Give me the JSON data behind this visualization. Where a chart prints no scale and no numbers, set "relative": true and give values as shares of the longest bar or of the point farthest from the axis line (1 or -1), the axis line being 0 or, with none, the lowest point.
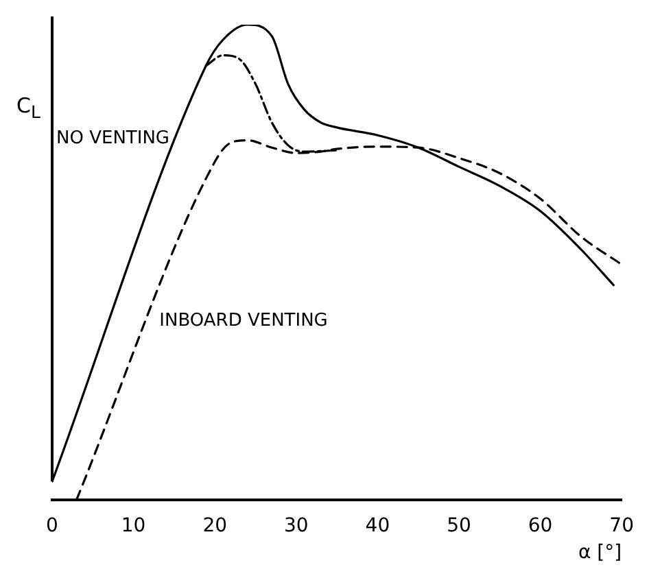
{
  "chart_data": {
    "type": "line",
    "relative": true,
    "ylabel": "C$_{L}$",
    "xlabel": "α [°]",
    "xlim": [
      0,
      70
    ],
    "xticks": [
      0,
      10,
      20,
      30,
      40,
      50,
      60,
      70
    ],
    "grid": false,
    "legend": false,
    "marker": "none",
    "series": [
      {
        "name": "NO VENTING",
        "color": "#000000",
        "line_style": "solid",
        "x": [
          0,
          18.9,
          21,
          24,
          27,
          29,
          31,
          33,
          35,
          40,
          45,
          50,
          55,
          60,
          65,
          69
        ],
        "values": [
          0,
          0.91,
          0.967,
          1,
          0.975,
          0.87,
          0.814,
          0.786,
          0.775,
          0.758,
          0.731,
          0.689,
          0.647,
          0.592,
          0.508,
          0.43
        ]
      },
      {
        "name": "INBOARD VENTING",
        "color": "#000000",
        "line_style": "dashed",
        "x": [
          3,
          20,
          22,
          24,
          27,
          30,
          33,
          35,
          40,
          45,
          50,
          55,
          60,
          65,
          70
        ],
        "values": [
          -0.04,
          0.7,
          0.742,
          0.747,
          0.731,
          0.719,
          0.722,
          0.728,
          0.733,
          0.731,
          0.708,
          0.675,
          0.619,
          0.536,
          0.475
        ]
      },
      {
        "color": "#000000",
        "line_style": "dashdot",
        "x": [
          18.9,
          21,
          23,
          25,
          27,
          29,
          31,
          35
        ],
        "values": [
          0.91,
          0.933,
          0.925,
          0.87,
          0.786,
          0.736,
          0.722,
          0.725
        ]
      }
    ]
  }
}
